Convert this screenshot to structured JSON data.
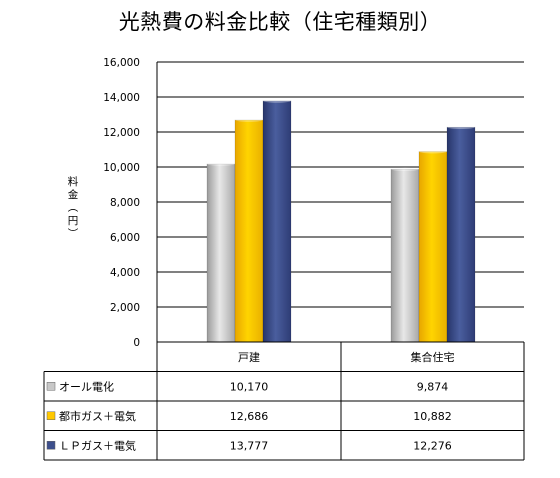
{
  "chart_data": {
    "type": "bar",
    "title": "光熱費の料金比較（住宅種類別）",
    "ylabel": "料金（円）",
    "categories": [
      "戸建",
      "集合住宅"
    ],
    "series": [
      {
        "name": "オール電化",
        "values": [
          10170,
          9874
        ],
        "labels": [
          "10,170",
          "9,874"
        ],
        "color": "#c8c8c8"
      },
      {
        "name": "都市ガス＋電気",
        "values": [
          12686,
          10882
        ],
        "labels": [
          "12,686",
          "10,882"
        ],
        "color": "#ffc800"
      },
      {
        "name": "ＬＰガス＋電気",
        "values": [
          13777,
          12276
        ],
        "labels": [
          "13,777",
          "12,276"
        ],
        "color": "#3d4f8c"
      }
    ],
    "ylim": [
      0,
      16000
    ],
    "yticks": [
      0,
      2000,
      4000,
      6000,
      8000,
      10000,
      12000,
      14000,
      16000
    ],
    "ytick_labels": [
      "0",
      "2,000",
      "4,000",
      "6,000",
      "8,000",
      "10,000",
      "12,000",
      "14,000",
      "16,000"
    ],
    "grid": true,
    "legend": "data-table"
  }
}
